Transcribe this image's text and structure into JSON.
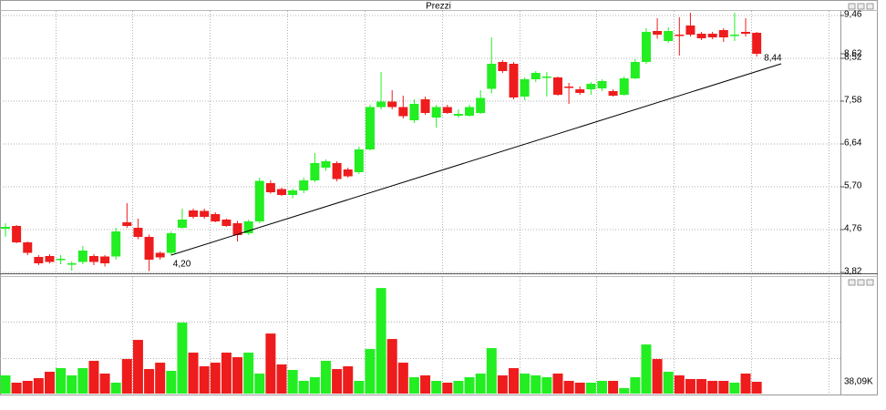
{
  "chart_data": {
    "type": "candlestick",
    "title": "Prezzi",
    "open": [
      4.78,
      4.84,
      4.48,
      4.16,
      4.18,
      4.1,
      4.0,
      4.05,
      4.18,
      4.17,
      4.17,
      4.92,
      4.8,
      4.6,
      4.25,
      4.25,
      4.8,
      5.18,
      5.17,
      5.1,
      4.98,
      4.9,
      4.68,
      4.94,
      5.78,
      5.65,
      5.52,
      5.62,
      5.84,
      6.12,
      6.22,
      6.08,
      6.02,
      6.52,
      7.45,
      7.57,
      7.45,
      7.16,
      7.62,
      7.22,
      7.45,
      7.26,
      7.26,
      7.32,
      7.85,
      8.44,
      8.4,
      7.68,
      8.06,
      8.12,
      8.1,
      7.9,
      7.84,
      7.84,
      7.86,
      7.8,
      7.72,
      8.08,
      8.44,
      9.12,
      8.9,
      9.04,
      9.24,
      9.06,
      9.06,
      9.14,
      9.02,
      9.1,
      9.08
    ],
    "high": [
      4.9,
      4.86,
      4.5,
      4.2,
      4.22,
      4.2,
      4.06,
      4.4,
      4.22,
      4.2,
      4.8,
      5.34,
      5.0,
      4.65,
      4.28,
      4.72,
      5.22,
      5.22,
      5.22,
      5.14,
      5.0,
      4.95,
      4.98,
      5.9,
      5.84,
      5.68,
      5.66,
      5.9,
      6.44,
      6.3,
      6.26,
      6.12,
      6.58,
      7.5,
      8.22,
      7.82,
      7.7,
      7.62,
      7.68,
      7.5,
      7.5,
      7.4,
      7.5,
      7.82,
      8.98,
      8.48,
      8.44,
      8.1,
      8.24,
      8.22,
      8.12,
      7.98,
      7.9,
      8.0,
      8.06,
      7.84,
      8.12,
      8.5,
      9.18,
      9.4,
      9.2,
      9.42,
      9.52,
      9.1,
      9.1,
      9.18,
      9.52,
      9.4,
      9.1
    ],
    "low": [
      4.6,
      4.46,
      4.2,
      3.98,
      4.02,
      4.0,
      3.86,
      4.0,
      3.98,
      3.95,
      4.1,
      4.8,
      4.55,
      3.85,
      4.1,
      4.2,
      4.78,
      5.0,
      5.0,
      4.92,
      4.82,
      4.5,
      4.64,
      4.9,
      5.55,
      5.5,
      5.45,
      5.56,
      5.8,
      6.05,
      5.82,
      5.9,
      5.98,
      6.5,
      7.4,
      7.4,
      7.2,
      7.1,
      7.28,
      7.0,
      7.3,
      7.22,
      7.24,
      7.3,
      7.75,
      8.2,
      7.62,
      7.6,
      8.0,
      7.68,
      7.7,
      7.52,
      7.72,
      7.72,
      7.8,
      7.68,
      7.7,
      8.06,
      8.4,
      8.95,
      8.86,
      8.58,
      9.0,
      8.92,
      8.94,
      8.88,
      8.9,
      9.0,
      8.56
    ],
    "close": [
      4.82,
      4.48,
      4.25,
      4.02,
      4.05,
      4.12,
      4.02,
      4.3,
      4.05,
      4.02,
      4.72,
      4.84,
      4.6,
      4.1,
      4.15,
      4.68,
      4.98,
      5.04,
      5.04,
      4.94,
      4.84,
      4.64,
      4.94,
      5.83,
      5.58,
      5.52,
      5.62,
      5.84,
      6.22,
      6.26,
      5.87,
      5.93,
      6.52,
      7.45,
      7.57,
      7.45,
      7.25,
      7.52,
      7.32,
      7.45,
      7.32,
      7.3,
      7.45,
      7.65,
      8.4,
      8.24,
      7.66,
      8.06,
      8.2,
      8.12,
      7.72,
      7.88,
      7.76,
      7.96,
      8.02,
      7.7,
      8.08,
      8.44,
      9.1,
      9.04,
      9.12,
      9.02,
      9.04,
      8.96,
      8.98,
      8.98,
      9.04,
      9.06,
      8.62
    ],
    "volume": [
      58.6,
      35.2,
      41.0,
      49.8,
      70.3,
      82.0,
      58.6,
      82.0,
      105.5,
      64.5,
      35.2,
      111.3,
      172.9,
      79.1,
      99.6,
      73.3,
      228.5,
      131.9,
      87.9,
      99.6,
      131.9,
      117.2,
      131.9,
      64.5,
      193.4,
      93.8,
      76.2,
      41.0,
      52.7,
      105.5,
      79.1,
      87.9,
      41.0,
      143.6,
      339.9,
      175.8,
      99.6,
      52.7,
      58.6,
      41.0,
      35.2,
      41.0,
      52.7,
      64.5,
      146.5,
      58.6,
      82.0,
      64.5,
      58.6,
      52.7,
      64.5,
      41.0,
      35.2,
      35.2,
      41.0,
      41.0,
      17.6,
      52.7,
      158.2,
      111.3,
      70.3,
      58.6,
      46.9,
      46.9,
      41.0,
      41.0,
      35.2,
      64.5,
      38.09
    ],
    "volume_label": "38,09K",
    "up_color": "#22ee22",
    "down_color": "#ee1c1c",
    "ylim": [
      3.8,
      9.56
    ],
    "yticks": [
      {
        "value": 3.82,
        "label": "3,82"
      },
      {
        "value": 4.76,
        "label": "4,76"
      },
      {
        "value": 5.7,
        "label": "5,70"
      },
      {
        "value": 6.64,
        "label": "6,64"
      },
      {
        "value": 7.58,
        "label": "7,58"
      },
      {
        "value": 8.52,
        "label": "8,52"
      },
      {
        "value": 9.46,
        "label": "9,46"
      }
    ],
    "last_price": {
      "value": 8.62,
      "label": "8,62"
    },
    "volume_ylim": [
      0,
      352
    ],
    "trendline": [
      {
        "value": 4.2,
        "label": "4,20"
      },
      {
        "value": 8.44,
        "label": "8,44"
      }
    ],
    "grid": true
  }
}
